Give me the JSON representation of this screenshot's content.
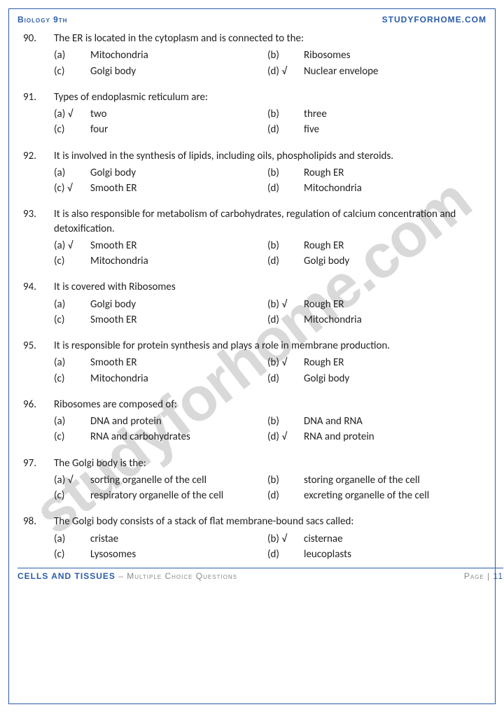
{
  "header": {
    "left": "Biology 9th",
    "right": "STUDYFORHOME.COM"
  },
  "footer": {
    "leftMain": "CELLS AND TISSUES",
    "leftSub": " – Multiple Choice Questions",
    "rightPrefix": "Page | ",
    "pageNum": "11"
  },
  "watermark": "studyforhome.com",
  "checkmark": "√",
  "questions": [
    {
      "num": "90.",
      "text": "The ER is located in the cytoplasm and is connected to the:",
      "options": [
        {
          "label": "(a)",
          "text": "Mitochondria",
          "correct": false
        },
        {
          "label": "(b)",
          "text": "Ribosomes",
          "correct": false
        },
        {
          "label": "(c)",
          "text": "Golgi body",
          "correct": false
        },
        {
          "label": "(d)",
          "text": "Nuclear envelope",
          "correct": true
        }
      ]
    },
    {
      "num": "91.",
      "text": "Types of endoplasmic reticulum are:",
      "options": [
        {
          "label": "(a)",
          "text": "two",
          "correct": true
        },
        {
          "label": "(b)",
          "text": "three",
          "correct": false
        },
        {
          "label": "(c)",
          "text": "four",
          "correct": false
        },
        {
          "label": "(d)",
          "text": "five",
          "correct": false
        }
      ]
    },
    {
      "num": "92.",
      "text": "It is involved in the synthesis of lipids, including oils, phospholipids and steroids.",
      "options": [
        {
          "label": "(a)",
          "text": "Golgi body",
          "correct": false
        },
        {
          "label": "(b)",
          "text": "Rough ER",
          "correct": false
        },
        {
          "label": "(c)",
          "text": "Smooth ER",
          "correct": true
        },
        {
          "label": "(d)",
          "text": "Mitochondria",
          "correct": false
        }
      ]
    },
    {
      "num": "93.",
      "text": "It is also responsible for metabolism of carbohydrates, regulation of calcium concentration and detoxification.",
      "options": [
        {
          "label": "(a)",
          "text": "Smooth ER",
          "correct": true
        },
        {
          "label": "(b)",
          "text": "Rough ER",
          "correct": false
        },
        {
          "label": "(c)",
          "text": "Mitochondria",
          "correct": false
        },
        {
          "label": "(d)",
          "text": "Golgi body",
          "correct": false
        }
      ]
    },
    {
      "num": "94.",
      "text": "It is covered with Ribosomes",
      "options": [
        {
          "label": "(a)",
          "text": "Golgi body",
          "correct": false
        },
        {
          "label": "(b)",
          "text": "Rough ER",
          "correct": true
        },
        {
          "label": "(c)",
          "text": "Smooth ER",
          "correct": false
        },
        {
          "label": "(d)",
          "text": "Mitochondria",
          "correct": false
        }
      ]
    },
    {
      "num": "95.",
      "text": "It is responsible for protein synthesis and plays a role in membrane production.",
      "options": [
        {
          "label": "(a)",
          "text": "Smooth ER",
          "correct": false
        },
        {
          "label": "(b)",
          "text": "Rough ER",
          "correct": true
        },
        {
          "label": "(c)",
          "text": "Mitochondria",
          "correct": false
        },
        {
          "label": "(d)",
          "text": "Golgi body",
          "correct": false
        }
      ]
    },
    {
      "num": "96.",
      "text": "Ribosomes are composed of:",
      "options": [
        {
          "label": "(a)",
          "text": "DNA and protein",
          "correct": false
        },
        {
          "label": "(b)",
          "text": "DNA and RNA",
          "correct": false
        },
        {
          "label": "(c)",
          "text": "RNA and carbohydrates",
          "correct": false
        },
        {
          "label": "(d)",
          "text": "RNA and protein",
          "correct": true
        }
      ]
    },
    {
      "num": "97.",
      "text": "The Golgi body is the:",
      "options": [
        {
          "label": "(a)",
          "text": "sorting organelle of the cell",
          "correct": true
        },
        {
          "label": "(b)",
          "text": "storing organelle of the cell",
          "correct": false
        },
        {
          "label": "(c)",
          "text": "respiratory organelle of the cell",
          "correct": false
        },
        {
          "label": "(d)",
          "text": "excreting organelle of the cell",
          "correct": false
        }
      ]
    },
    {
      "num": "98.",
      "text": "The Golgi body consists of a stack of flat membrane-bound sacs called:",
      "options": [
        {
          "label": "(a)",
          "text": "cristae",
          "correct": false
        },
        {
          "label": "(b)",
          "text": "cisternae",
          "correct": true
        },
        {
          "label": "(c)",
          "text": "Lysosomes",
          "correct": false
        },
        {
          "label": "(d)",
          "text": "leucoplasts",
          "correct": false
        }
      ]
    }
  ]
}
